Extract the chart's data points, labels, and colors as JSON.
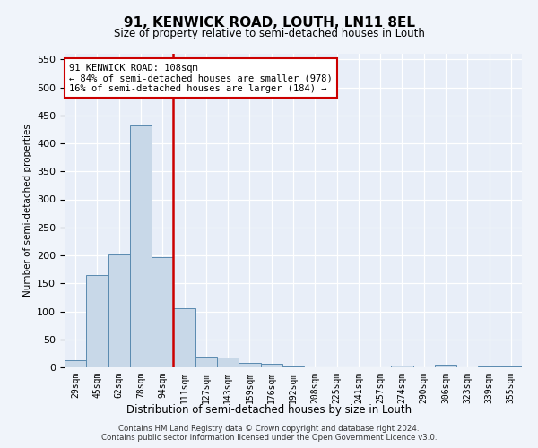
{
  "title": "91, KENWICK ROAD, LOUTH, LN11 8EL",
  "subtitle": "Size of property relative to semi-detached houses in Louth",
  "xlabel": "Distribution of semi-detached houses by size in Louth",
  "ylabel": "Number of semi-detached properties",
  "categories": [
    "29sqm",
    "45sqm",
    "62sqm",
    "78sqm",
    "94sqm",
    "111sqm",
    "127sqm",
    "143sqm",
    "159sqm",
    "176sqm",
    "192sqm",
    "208sqm",
    "225sqm",
    "241sqm",
    "257sqm",
    "274sqm",
    "290sqm",
    "306sqm",
    "323sqm",
    "339sqm",
    "355sqm"
  ],
  "values": [
    13,
    165,
    202,
    432,
    197,
    106,
    20,
    17,
    8,
    7,
    1,
    0,
    0,
    0,
    0,
    3,
    0,
    5,
    0,
    2,
    2
  ],
  "bar_color": "#c8d8e8",
  "bar_edge_color": "#5a8ab0",
  "vline_color": "#cc0000",
  "annotation_text": "91 KENWICK ROAD: 108sqm\n← 84% of semi-detached houses are smaller (978)\n16% of semi-detached houses are larger (184) →",
  "annotation_box_color": "#ffffff",
  "annotation_box_edge": "#cc0000",
  "ylim": [
    0,
    560
  ],
  "yticks": [
    0,
    50,
    100,
    150,
    200,
    250,
    300,
    350,
    400,
    450,
    500,
    550
  ],
  "footer1": "Contains HM Land Registry data © Crown copyright and database right 2024.",
  "footer2": "Contains public sector information licensed under the Open Government Licence v3.0.",
  "bg_color": "#f0f4fa",
  "plot_bg_color": "#e8eef8"
}
